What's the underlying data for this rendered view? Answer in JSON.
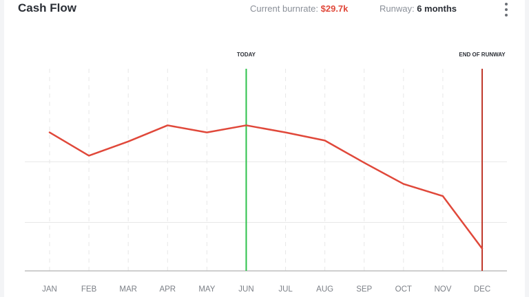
{
  "header": {
    "title": "Cash Flow",
    "burnrate_label": "Current burnrate:",
    "burnrate_value": "$29.7k",
    "runway_label": "Runway:",
    "runway_value": "6 months",
    "menu_icon": "more-vertical-icon"
  },
  "colors": {
    "line": "#e0483a",
    "today": "#2ec14b",
    "runway": "#c0392b",
    "grid": "#e7e7e7",
    "axis": "#bdbdbd",
    "tick": "#7b7f86"
  },
  "chart_data": {
    "type": "line",
    "categories": [
      "JAN",
      "FEB",
      "MAR",
      "APR",
      "MAY",
      "JUN",
      "JUL",
      "AUG",
      "SEP",
      "OCT",
      "NOV",
      "DEC"
    ],
    "values": [
      0.685,
      0.57,
      0.64,
      0.72,
      0.685,
      0.72,
      0.685,
      0.645,
      0.535,
      0.43,
      0.37,
      0.11
    ],
    "ylim": [
      0,
      1
    ],
    "grid": true,
    "markers": [
      {
        "label": "TODAY",
        "category": "JUN"
      },
      {
        "label": "END OF RUNWAY",
        "category": "DEC"
      }
    ]
  }
}
